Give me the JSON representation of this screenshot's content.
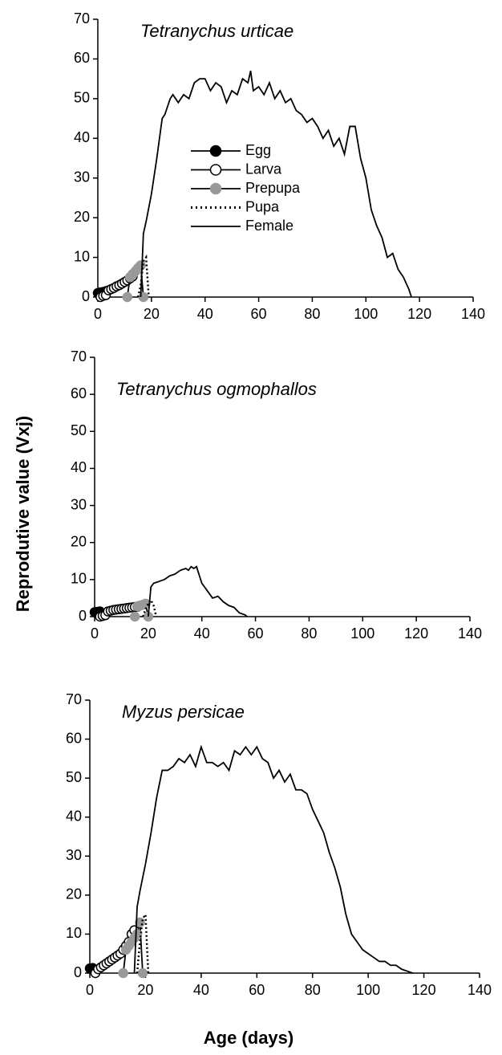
{
  "chart_data": [
    {
      "type": "line",
      "title": "Tetranychus urticae",
      "legend": true,
      "xlim": [
        0,
        140
      ],
      "xticks": [
        0,
        20,
        40,
        60,
        80,
        100,
        120,
        140
      ],
      "ylim": [
        0,
        70
      ],
      "yticks": [
        0,
        10,
        20,
        30,
        40,
        50,
        60,
        70
      ],
      "series": [
        {
          "name": "Egg",
          "color": "#000000",
          "marker": "filled",
          "dotted": false,
          "x": [
            0,
            1,
            2,
            3
          ],
          "values": [
            1,
            1.2,
            1.3,
            1.5
          ]
        },
        {
          "name": "Larva",
          "color": "#000000",
          "marker": "open",
          "dotted": false,
          "x": [
            1,
            2,
            3,
            4,
            5,
            6,
            7,
            8,
            9,
            10,
            11,
            12,
            13
          ],
          "values": [
            0,
            0.3,
            0.5,
            1.7,
            2,
            2.3,
            2.7,
            3,
            3.4,
            3.8,
            4.2,
            4.7,
            5.2
          ]
        },
        {
          "name": "Prepupa",
          "color": "#999999",
          "marker": "filled",
          "dotted": false,
          "x": [
            11,
            12,
            13,
            14,
            15,
            16,
            17
          ],
          "values": [
            0,
            5,
            5.8,
            6.5,
            7.3,
            8,
            0
          ]
        },
        {
          "name": "Pupa",
          "color": "#000000",
          "marker": "none",
          "dotted": true,
          "x": [
            15,
            16,
            17,
            18,
            19
          ],
          "values": [
            0,
            3,
            9,
            10,
            0
          ]
        },
        {
          "name": "Female",
          "color": "#000000",
          "marker": "none",
          "dotted": false,
          "x": [
            16,
            17,
            18,
            20,
            22,
            24,
            25,
            27,
            28,
            30,
            32,
            34,
            36,
            38,
            40,
            42,
            44,
            46,
            48,
            50,
            52,
            54,
            56,
            57,
            58,
            60,
            62,
            64,
            66,
            68,
            70,
            72,
            74,
            76,
            78,
            80,
            82,
            84,
            86,
            88,
            90,
            92,
            94,
            96,
            98,
            100,
            102,
            104,
            106,
            108,
            110,
            112,
            114,
            116,
            117
          ],
          "values": [
            0,
            16,
            19,
            26,
            35,
            45,
            46,
            50,
            51,
            49,
            51,
            50,
            54,
            55,
            55,
            52,
            54,
            53,
            49,
            52,
            51,
            55,
            54,
            57,
            52,
            53,
            51,
            54,
            50,
            52,
            49,
            50,
            47,
            46,
            44,
            45,
            43,
            40,
            42,
            38,
            40,
            36,
            43,
            43,
            35,
            30,
            22,
            18,
            15,
            10,
            11,
            7,
            5,
            2,
            0
          ]
        }
      ]
    },
    {
      "type": "line",
      "title": "Tetranychus ogmophallos",
      "ylabel": "Reprodutive value (Vxj)",
      "xlim": [
        0,
        140
      ],
      "xticks": [
        0,
        20,
        40,
        60,
        80,
        100,
        120,
        140
      ],
      "ylim": [
        0,
        70
      ],
      "yticks": [
        0,
        10,
        20,
        30,
        40,
        50,
        60,
        70
      ],
      "series": [
        {
          "color": "#000000",
          "marker": "filled",
          "dotted": false,
          "x": [
            0,
            1,
            2
          ],
          "values": [
            1.2,
            1.3,
            1.4
          ]
        },
        {
          "color": "#000000",
          "marker": "open",
          "dotted": false,
          "x": [
            2,
            3,
            4,
            5,
            6,
            7,
            8,
            9,
            10,
            11,
            12,
            13,
            14,
            15,
            16
          ],
          "values": [
            0,
            0.2,
            0.4,
            1.4,
            1.6,
            1.8,
            1.9,
            2,
            2.1,
            2.2,
            2.3,
            2.4,
            2.5,
            2.6,
            2.7
          ]
        },
        {
          "color": "#999999",
          "marker": "filled",
          "dotted": false,
          "x": [
            15,
            16,
            17,
            18,
            19,
            20
          ],
          "values": [
            0,
            2.8,
            3,
            3.2,
            3.5,
            0
          ]
        },
        {
          "color": "#000000",
          "marker": "none",
          "dotted": true,
          "x": [
            18,
            19,
            20,
            21,
            22,
            23
          ],
          "values": [
            0,
            2,
            3.5,
            4.5,
            3,
            0
          ]
        },
        {
          "color": "#000000",
          "marker": "none",
          "dotted": false,
          "x": [
            20,
            21,
            22,
            24,
            26,
            28,
            30,
            32,
            34,
            35,
            36,
            37,
            38,
            40,
            42,
            44,
            46,
            48,
            50,
            52,
            54,
            56,
            57
          ],
          "values": [
            0,
            8,
            9,
            9.5,
            10,
            11,
            11.5,
            12.5,
            13,
            12.5,
            13.5,
            13,
            13.5,
            9,
            7,
            5,
            5.5,
            4,
            3,
            2.5,
            1,
            0.5,
            0
          ]
        }
      ]
    },
    {
      "type": "line",
      "title": "Myzus persicae",
      "xlabel": "Age (days)",
      "xlim": [
        0,
        140
      ],
      "xticks": [
        0,
        20,
        40,
        60,
        80,
        100,
        120,
        140
      ],
      "ylim": [
        0,
        70
      ],
      "yticks": [
        0,
        10,
        20,
        30,
        40,
        50,
        60,
        70
      ],
      "series": [
        {
          "color": "#000000",
          "marker": "filled",
          "dotted": false,
          "x": [
            0,
            1
          ],
          "values": [
            1.2,
            1.3
          ]
        },
        {
          "color": "#000000",
          "marker": "open",
          "dotted": false,
          "x": [
            2,
            3,
            4,
            5,
            6,
            7,
            8,
            9,
            10,
            11,
            12,
            13,
            14,
            15,
            16
          ],
          "values": [
            0,
            1,
            1.5,
            2,
            2.5,
            3,
            3.5,
            4,
            4.5,
            5,
            6,
            7,
            8,
            10,
            11
          ]
        },
        {
          "color": "#999999",
          "marker": "filled",
          "dotted": false,
          "x": [
            12,
            13,
            14,
            15,
            16,
            17,
            18,
            19
          ],
          "values": [
            0,
            6,
            7,
            8,
            9,
            10,
            13,
            0
          ]
        },
        {
          "color": "#000000",
          "marker": "none",
          "dotted": true,
          "x": [
            17,
            18,
            19,
            20,
            21
          ],
          "values": [
            0,
            8,
            14,
            15,
            0
          ]
        },
        {
          "color": "#000000",
          "marker": "none",
          "dotted": false,
          "x": [
            16,
            17,
            18,
            20,
            22,
            24,
            26,
            28,
            30,
            32,
            34,
            36,
            38,
            40,
            42,
            44,
            46,
            48,
            50,
            52,
            54,
            56,
            58,
            60,
            62,
            64,
            66,
            68,
            70,
            72,
            74,
            76,
            78,
            80,
            82,
            84,
            86,
            88,
            90,
            92,
            94,
            96,
            98,
            100,
            102,
            104,
            106,
            108,
            110,
            112,
            114,
            116
          ],
          "values": [
            0,
            17,
            21,
            28,
            36,
            45,
            52,
            52,
            53,
            55,
            54,
            56,
            53,
            58,
            54,
            54,
            53,
            54,
            52,
            57,
            56,
            58,
            56,
            58,
            55,
            54,
            50,
            52,
            49,
            51,
            47,
            47,
            46,
            42,
            39,
            36,
            31,
            27,
            22,
            15,
            10,
            8,
            6,
            5,
            4,
            3,
            3,
            2,
            2,
            1,
            0.5,
            0
          ]
        }
      ]
    }
  ]
}
